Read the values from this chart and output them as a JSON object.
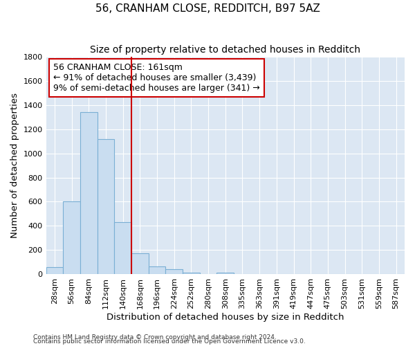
{
  "title": "56, CRANHAM CLOSE, REDDITCH, B97 5AZ",
  "subtitle": "Size of property relative to detached houses in Redditch",
  "xlabel": "Distribution of detached houses by size in Redditch",
  "ylabel": "Number of detached properties",
  "footnote1": "Contains HM Land Registry data © Crown copyright and database right 2024.",
  "footnote2": "Contains public sector information licensed under the Open Government Licence v3.0.",
  "bin_labels": [
    "28sqm",
    "56sqm",
    "84sqm",
    "112sqm",
    "140sqm",
    "168sqm",
    "196sqm",
    "224sqm",
    "252sqm",
    "280sqm",
    "308sqm",
    "335sqm",
    "363sqm",
    "391sqm",
    "419sqm",
    "447sqm",
    "475sqm",
    "503sqm",
    "531sqm",
    "559sqm",
    "587sqm"
  ],
  "bar_values": [
    60,
    600,
    1340,
    1120,
    430,
    175,
    65,
    40,
    15,
    0,
    15,
    0,
    0,
    0,
    0,
    0,
    0,
    0,
    0,
    0,
    0
  ],
  "bar_color": "#c9ddf0",
  "bar_edge_color": "#7aafd4",
  "vline_at_index": 5,
  "vline_color": "#cc0000",
  "annotation_line1": "56 CRANHAM CLOSE: 161sqm",
  "annotation_line2": "← 91% of detached houses are smaller (3,439)",
  "annotation_line3": "9% of semi-detached houses are larger (341) →",
  "annotation_box_facecolor": "white",
  "annotation_box_edgecolor": "#cc0000",
  "ylim": [
    0,
    1800
  ],
  "yticks": [
    0,
    200,
    400,
    600,
    800,
    1000,
    1200,
    1400,
    1600,
    1800
  ],
  "plot_bg_color": "#dce7f3",
  "fig_bg_color": "#ffffff",
  "title_fontsize": 11,
  "subtitle_fontsize": 10,
  "axis_label_fontsize": 9.5,
  "tick_fontsize": 8,
  "annotation_fontsize": 9,
  "footnote_fontsize": 6.5
}
